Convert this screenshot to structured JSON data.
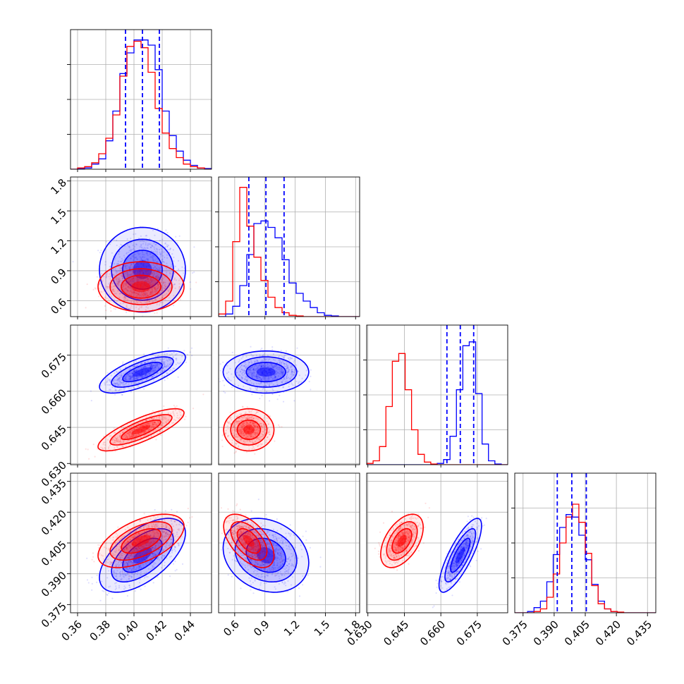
{
  "chart_data": {
    "type": "corner",
    "colors": {
      "series_a": "#0000ff",
      "series_b": "#ff0000"
    },
    "grid": true,
    "legend": "none",
    "parameters": [
      {
        "range": [
          0.355,
          0.455
        ],
        "ticks": [
          0.36,
          0.38,
          0.4,
          0.42,
          0.44
        ],
        "tick_labels": [
          "0.36",
          "0.38",
          "0.40",
          "0.42",
          "0.44"
        ]
      },
      {
        "range": [
          0.44,
          1.84
        ],
        "ticks": [
          0.6,
          0.9,
          1.2,
          1.5,
          1.8
        ],
        "tick_labels": [
          "0.6",
          "0.9",
          "1.2",
          "1.5",
          "1.8"
        ]
      },
      {
        "range": [
          0.6295,
          0.6875
        ],
        "ticks": [
          0.63,
          0.645,
          0.66,
          0.675
        ],
        "tick_labels": [
          "0.630",
          "0.645",
          "0.660",
          "0.675"
        ]
      },
      {
        "range": [
          0.371,
          0.439
        ],
        "ticks": [
          0.375,
          0.39,
          0.405,
          0.42,
          0.435
        ],
        "tick_labels": [
          "0.375",
          "0.390",
          "0.405",
          "0.420",
          "0.435"
        ]
      }
    ],
    "quantiles": [
      [
        0.394,
        0.406,
        0.418
      ],
      [
        0.74,
        0.91,
        1.09
      ],
      [
        0.6625,
        0.668,
        0.6735
      ],
      [
        0.3915,
        0.3985,
        0.4055
      ]
    ],
    "series": [
      {
        "color": "#0000ff",
        "means": [
          0.406,
          0.91,
          0.668,
          0.399
        ],
        "sds": [
          0.0122,
          0.17,
          0.0035,
          0.0072
        ],
        "corr": [
          [
            1.0,
            0.0,
            0.7,
            0.6
          ],
          [
            0.0,
            1.0,
            0.0,
            -0.2
          ],
          [
            0.7,
            0.0,
            1.0,
            0.8
          ],
          [
            0.6,
            -0.2,
            0.8,
            1.0
          ]
        ],
        "hist": [
          [
            0,
            0.5,
            1,
            4,
            8,
            22,
            45,
            74,
            90,
            100,
            100,
            96,
            77,
            45,
            26,
            14,
            7,
            3,
            1,
            0.5
          ],
          [
            0,
            2,
            8,
            24,
            48,
            72,
            74,
            69,
            61,
            44,
            26,
            18,
            12,
            7,
            3,
            1,
            0.5,
            0,
            0,
            0
          ],
          [
            0,
            0,
            0,
            0,
            0,
            0,
            0,
            0,
            0,
            0,
            0,
            1,
            4,
            22,
            58,
            92,
            95,
            55,
            16,
            3,
            0.5,
            0
          ],
          [
            0,
            0,
            1,
            4,
            9,
            24,
            45,
            66,
            76,
            74,
            60,
            41,
            22,
            9,
            3,
            1,
            0,
            0,
            0,
            0,
            0,
            0
          ]
        ]
      },
      {
        "color": "#ff0000",
        "means": [
          0.405,
          0.74,
          0.644,
          0.406
        ],
        "sds": [
          0.0122,
          0.1,
          0.0035,
          0.0052
        ],
        "corr": [
          [
            1.0,
            0.0,
            0.8,
            0.55
          ],
          [
            0.0,
            1.0,
            0.0,
            -0.55
          ],
          [
            0.8,
            0.0,
            1.0,
            0.5
          ],
          [
            0.55,
            -0.55,
            0.5,
            1.0
          ]
        ],
        "hist": [
          [
            0,
            1,
            2,
            5,
            12,
            24,
            42,
            72,
            95,
            99,
            94,
            75,
            47,
            28,
            16,
            9,
            4,
            2,
            1,
            0
          ],
          [
            2,
            12,
            58,
            100,
            70,
            46,
            28,
            15,
            7,
            3,
            1,
            0.5,
            0,
            0,
            0,
            0,
            0,
            0,
            0,
            0
          ],
          [
            1,
            3,
            14,
            45,
            80,
            86,
            58,
            27,
            8,
            2,
            0.5,
            0,
            0,
            0,
            0,
            0,
            0,
            0,
            0,
            0,
            0,
            0
          ],
          [
            0,
            0,
            0,
            1,
            3,
            12,
            30,
            54,
            74,
            84,
            70,
            46,
            21,
            7,
            3,
            1,
            0.5,
            0,
            0,
            0,
            0,
            0
          ]
        ]
      }
    ]
  }
}
